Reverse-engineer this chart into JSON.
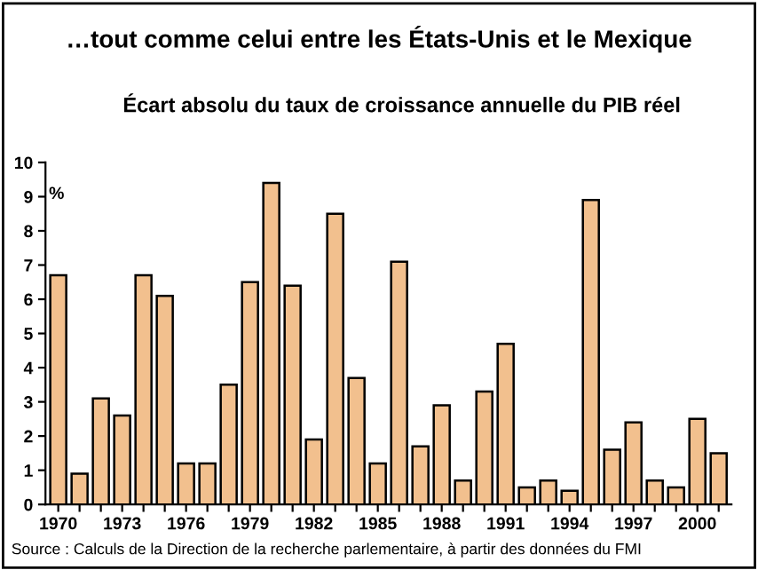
{
  "chart_data": {
    "type": "bar",
    "title": "…tout comme celui entre les États-Unis et le Mexique",
    "subtitle": "Écart absolu du taux de croissance annuelle du PIB réel",
    "ylabel": "%",
    "categories": [
      "1970",
      null,
      null,
      "1973",
      null,
      null,
      "1976",
      null,
      null,
      "1979",
      null,
      null,
      "1982",
      null,
      null,
      "1985",
      null,
      null,
      "1988",
      null,
      null,
      "1991",
      null,
      null,
      "1994",
      null,
      null,
      "1997",
      null,
      null,
      "2000",
      null
    ],
    "values": [
      6.7,
      0.9,
      3.1,
      2.6,
      6.7,
      6.1,
      1.2,
      1.2,
      3.5,
      6.5,
      9.4,
      6.4,
      1.9,
      8.5,
      3.7,
      1.2,
      7.1,
      1.7,
      2.9,
      0.7,
      3.3,
      4.7,
      0.5,
      0.7,
      0.4,
      8.9,
      1.6,
      2.4,
      0.7,
      0.5,
      2.5,
      1.5
    ],
    "color": "#f2c08e",
    "ylim": [
      0,
      10
    ],
    "yticks": [
      0,
      1,
      2,
      3,
      4,
      5,
      6,
      7,
      8,
      9,
      10
    ],
    "annotations": [
      "Source : Calculs de la Direction de la recherche parlementaire, à partir des données du FMI"
    ]
  }
}
